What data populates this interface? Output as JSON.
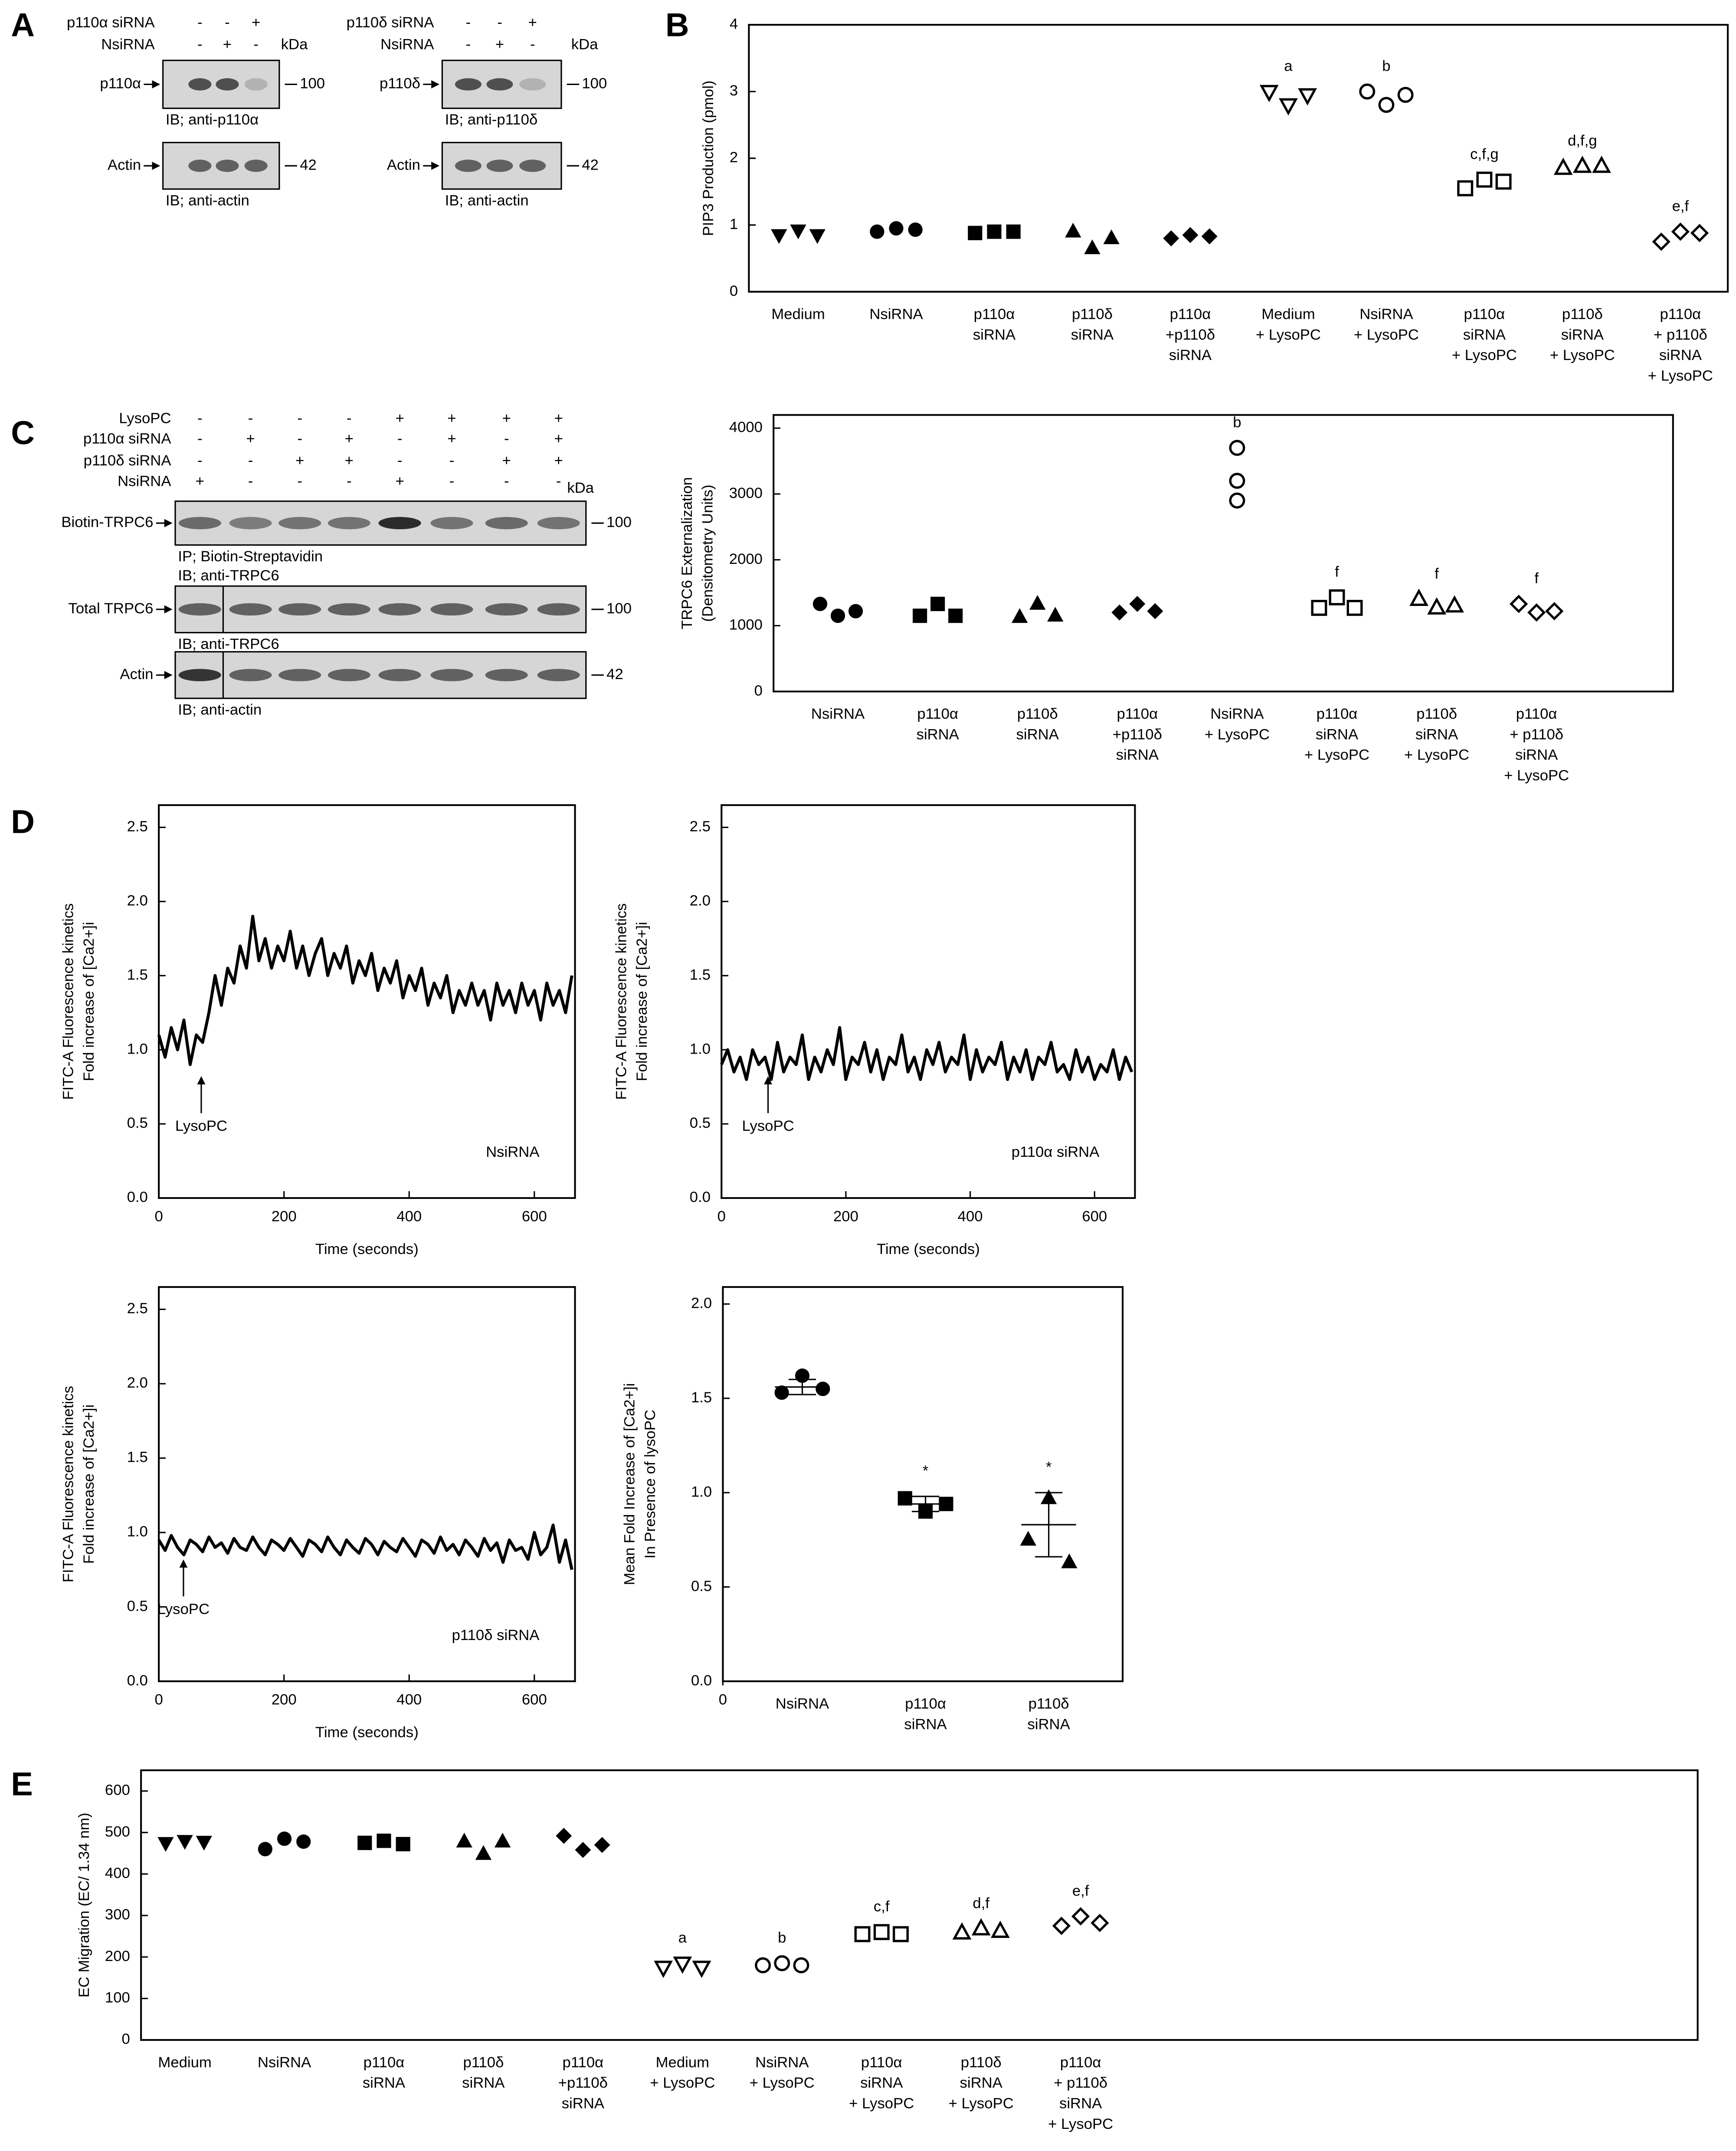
{
  "panels": [
    "A",
    "B",
    "C",
    "D",
    "E"
  ],
  "blots": {
    "A": [
      {
        "rows": [
          {
            "label": "p110α siRNA",
            "signs": [
              "-",
              "-",
              "+"
            ]
          },
          {
            "label": "NsiRNA",
            "signs": [
              "-",
              "+",
              "-"
            ]
          }
        ],
        "kda": "kDa",
        "bands": [
          {
            "label": "p110α",
            "marker": "100",
            "captions": [
              "IB; anti-p110α"
            ]
          },
          {
            "label": "Actin",
            "marker": "42",
            "captions": [
              "IB; anti-actin"
            ]
          }
        ]
      },
      {
        "rows": [
          {
            "label": "p110δ siRNA",
            "signs": [
              "-",
              "-",
              "+"
            ]
          },
          {
            "label": "NsiRNA",
            "signs": [
              "-",
              "+",
              "-"
            ]
          }
        ],
        "kda": "kDa",
        "bands": [
          {
            "label": "p110δ",
            "marker": "100",
            "captions": [
              "IB; anti-p110δ"
            ]
          },
          {
            "label": "Actin",
            "marker": "42",
            "captions": [
              "IB; anti-actin"
            ]
          }
        ]
      }
    ],
    "C": {
      "rows": [
        {
          "label": "LysoPC",
          "signs": [
            "-",
            "-",
            "-",
            "-",
            "+",
            "+",
            "+",
            "+"
          ]
        },
        {
          "label": "p110α siRNA",
          "signs": [
            "-",
            "+",
            "-",
            "+",
            "-",
            "+",
            "-",
            "+"
          ]
        },
        {
          "label": "p110δ siRNA",
          "signs": [
            "-",
            "-",
            "+",
            "+",
            "-",
            "-",
            "+",
            "+"
          ]
        },
        {
          "label": "NsiRNA",
          "signs": [
            "+",
            "-",
            "-",
            "-",
            "+",
            "-",
            "-",
            "-"
          ]
        }
      ],
      "kda": "kDa",
      "bands": [
        {
          "label": "Biotin-TRPC6",
          "marker": "100",
          "captions": [
            "IP; Biotin-Streptavidin",
            "IB; anti-TRPC6"
          ]
        },
        {
          "label": "Total TRPC6",
          "marker": "100",
          "captions": [
            "IB; anti-TRPC6"
          ]
        },
        {
          "label": "Actin",
          "marker": "42",
          "captions": [
            "IB; anti-actin"
          ]
        }
      ]
    }
  },
  "chart_data": [
    {
      "type": "dot",
      "ylabel": [
        "PIP3 Production (pmol)"
      ],
      "color": "#000000",
      "ylim": [
        0,
        4
      ],
      "yticks": [
        0,
        1,
        2,
        3,
        4
      ],
      "categories": [
        [
          "Medium"
        ],
        [
          "NsiRNA"
        ],
        [
          "p110α",
          "siRNA"
        ],
        [
          "p110δ",
          "siRNA"
        ],
        [
          "p110α",
          "+p110δ",
          "siRNA"
        ],
        [
          "Medium",
          "+ LysoPC"
        ],
        [
          "NsiRNA",
          "+ LysoPC"
        ],
        [
          "p110α",
          "siRNA",
          "+ LysoPC"
        ],
        [
          "p110δ",
          "siRNA",
          "+ LysoPC"
        ],
        [
          "p110α",
          "+ p110δ",
          "siRNA",
          "+ LysoPC"
        ]
      ],
      "markers": [
        "triangle-down-filled",
        "circle-filled",
        "square-filled",
        "triangle-up-filled",
        "diamond-filled",
        "triangle-down-open",
        "circle-open",
        "square-open",
        "triangle-up-open",
        "diamond-open"
      ],
      "values": [
        [
          0.85,
          0.92,
          0.85
        ],
        [
          0.9,
          0.95,
          0.93
        ],
        [
          0.88,
          0.9,
          0.9
        ],
        [
          0.9,
          0.65,
          0.8
        ],
        [
          0.8,
          0.85,
          0.83
        ],
        [
          3.0,
          2.8,
          2.95
        ],
        [
          3.0,
          2.8,
          2.95
        ],
        [
          1.55,
          1.68,
          1.65
        ],
        [
          1.85,
          1.88,
          1.88
        ],
        [
          0.75,
          0.9,
          0.88
        ]
      ],
      "annotations": [
        null,
        null,
        null,
        null,
        null,
        "a",
        "b",
        "c,f,g",
        "d,f,g",
        "e,f"
      ]
    },
    {
      "type": "dot",
      "ylabel": [
        "TRPC6 Externalization",
        "(Densitometry Units)"
      ],
      "color": "#000000",
      "ylim": [
        0,
        4200
      ],
      "yticks": [
        0,
        1000,
        2000,
        3000,
        4000
      ],
      "categories": [
        [
          "NsiRNA"
        ],
        [
          "p110α",
          "siRNA"
        ],
        [
          "p110δ",
          "siRNA"
        ],
        [
          "p110α",
          "+p110δ",
          "siRNA"
        ],
        [
          "NsiRNA",
          "+ LysoPC"
        ],
        [
          "p110α",
          "siRNA",
          "+ LysoPC"
        ],
        [
          "p110δ",
          "siRNA",
          "+ LysoPC"
        ],
        [
          "p110α",
          "+ p110δ",
          "siRNA",
          "+ LysoPC"
        ]
      ],
      "markers": [
        "circle-filled",
        "square-filled",
        "triangle-up-filled",
        "diamond-filled",
        "circle-open",
        "square-open",
        "triangle-up-open",
        "diamond-open"
      ],
      "values": [
        [
          1330,
          1150,
          1220
        ],
        [
          1150,
          1330,
          1150
        ],
        [
          1130,
          1330,
          1150
        ],
        [
          1200,
          1330,
          1220
        ],
        [
          3700,
          3200,
          2900
        ],
        [
          1270,
          1430,
          1270
        ],
        [
          1400,
          1270,
          1300
        ],
        [
          1330,
          1200,
          1220
        ]
      ],
      "annotations": [
        null,
        null,
        null,
        null,
        "b",
        "f",
        "f",
        "f"
      ]
    },
    {
      "type": "line",
      "ylabel": [
        "FITC-A Fluorescence kinetics",
        "Fold increase of [Ca2+]i"
      ],
      "xlabel": "Time (seconds)",
      "color": "#000000",
      "label": "NsiRNA",
      "arrow_label": "LysoPC",
      "xlim": [
        0,
        665
      ],
      "xticks": [
        0,
        200,
        400,
        600
      ],
      "ylim": [
        0,
        2.65
      ],
      "yticks": [
        {
          "value": 0,
          "label": "0.0"
        },
        0.5,
        {
          "value": 1,
          "label": "1.0"
        },
        1.5,
        {
          "value": 2,
          "label": "2.0"
        },
        2.5
      ],
      "x": [
        0,
        10,
        20,
        30,
        40,
        50,
        60,
        70,
        80,
        90,
        100,
        110,
        120,
        130,
        140,
        150,
        160,
        170,
        180,
        190,
        200,
        210,
        220,
        230,
        240,
        250,
        260,
        270,
        280,
        290,
        300,
        310,
        320,
        330,
        340,
        350,
        360,
        370,
        380,
        390,
        400,
        410,
        420,
        430,
        440,
        450,
        460,
        470,
        480,
        490,
        500,
        510,
        520,
        530,
        540,
        550,
        560,
        570,
        580,
        590,
        600,
        610,
        620,
        630,
        640,
        650,
        660
      ],
      "values": [
        1.1,
        0.95,
        1.15,
        1.0,
        1.2,
        0.9,
        1.1,
        1.05,
        1.25,
        1.5,
        1.3,
        1.55,
        1.45,
        1.7,
        1.55,
        1.9,
        1.6,
        1.75,
        1.55,
        1.7,
        1.6,
        1.8,
        1.55,
        1.7,
        1.5,
        1.65,
        1.75,
        1.5,
        1.65,
        1.55,
        1.7,
        1.45,
        1.6,
        1.5,
        1.65,
        1.4,
        1.55,
        1.45,
        1.6,
        1.35,
        1.5,
        1.4,
        1.55,
        1.3,
        1.45,
        1.35,
        1.5,
        1.25,
        1.4,
        1.3,
        1.45,
        1.3,
        1.4,
        1.2,
        1.45,
        1.3,
        1.4,
        1.25,
        1.45,
        1.3,
        1.4,
        1.2,
        1.45,
        1.3,
        1.4,
        1.25,
        1.5
      ]
    },
    {
      "type": "line",
      "ylabel": [
        "FITC-A Fluorescence kinetics",
        "Fold increase of [Ca2+]i"
      ],
      "xlabel": "Time (seconds)",
      "color": "#000000",
      "label": "p110α siRNA",
      "arrow_label": "LysoPC",
      "xlim": [
        0,
        665
      ],
      "xticks": [
        0,
        200,
        400,
        600
      ],
      "ylim": [
        0,
        2.65
      ],
      "yticks": [
        {
          "value": 0,
          "label": "0.0"
        },
        0.5,
        {
          "value": 1,
          "label": "1.0"
        },
        1.5,
        {
          "value": 2,
          "label": "2.0"
        },
        2.5
      ],
      "x": [
        0,
        10,
        20,
        30,
        40,
        50,
        60,
        70,
        80,
        90,
        100,
        110,
        120,
        130,
        140,
        150,
        160,
        170,
        180,
        190,
        200,
        210,
        220,
        230,
        240,
        250,
        260,
        270,
        280,
        290,
        300,
        310,
        320,
        330,
        340,
        350,
        360,
        370,
        380,
        390,
        400,
        410,
        420,
        430,
        440,
        450,
        460,
        470,
        480,
        490,
        500,
        510,
        520,
        530,
        540,
        550,
        560,
        570,
        580,
        590,
        600,
        610,
        620,
        630,
        640,
        650,
        660
      ],
      "values": [
        0.9,
        1.0,
        0.85,
        0.95,
        0.8,
        1.0,
        0.9,
        0.95,
        0.8,
        1.05,
        0.85,
        0.95,
        0.9,
        1.1,
        0.8,
        0.95,
        0.85,
        1.0,
        0.9,
        1.15,
        0.8,
        0.95,
        0.9,
        1.05,
        0.85,
        1.0,
        0.8,
        0.95,
        0.9,
        1.1,
        0.85,
        0.95,
        0.8,
        1.0,
        0.9,
        1.05,
        0.85,
        0.95,
        0.9,
        1.1,
        0.8,
        1.0,
        0.85,
        0.95,
        0.9,
        1.05,
        0.8,
        0.95,
        0.85,
        1.0,
        0.8,
        0.95,
        0.9,
        1.05,
        0.85,
        0.9,
        0.8,
        1.0,
        0.85,
        0.95,
        0.8,
        0.9,
        0.85,
        1.0,
        0.8,
        0.95,
        0.85
      ]
    },
    {
      "type": "line",
      "ylabel": [
        "FITC-A Fluorescence kinetics",
        "Fold increase of [Ca2+]i"
      ],
      "xlabel": "Time (seconds)",
      "color": "#000000",
      "label": "p110δ siRNA",
      "arrow_label": "LysoPC",
      "xlim": [
        0,
        665
      ],
      "xticks": [
        0,
        200,
        400,
        600
      ],
      "ylim": [
        0,
        2.65
      ],
      "yticks": [
        {
          "value": 0,
          "label": "0.0"
        },
        0.5,
        {
          "value": 1,
          "label": "1.0"
        },
        1.5,
        {
          "value": 2,
          "label": "2.0"
        },
        2.5
      ],
      "x": [
        0,
        10,
        20,
        30,
        40,
        50,
        60,
        70,
        80,
        90,
        100,
        110,
        120,
        130,
        140,
        150,
        160,
        170,
        180,
        190,
        200,
        210,
        220,
        230,
        240,
        250,
        260,
        270,
        280,
        290,
        300,
        310,
        320,
        330,
        340,
        350,
        360,
        370,
        380,
        390,
        400,
        410,
        420,
        430,
        440,
        450,
        460,
        470,
        480,
        490,
        500,
        510,
        520,
        530,
        540,
        550,
        560,
        570,
        580,
        590,
        600,
        610,
        620,
        630,
        640,
        650,
        660
      ],
      "values": [
        0.95,
        0.88,
        0.98,
        0.9,
        0.85,
        0.95,
        0.92,
        0.87,
        0.97,
        0.9,
        0.93,
        0.86,
        0.96,
        0.9,
        0.88,
        0.97,
        0.9,
        0.85,
        0.95,
        0.92,
        0.88,
        0.96,
        0.9,
        0.84,
        0.95,
        0.92,
        0.87,
        0.97,
        0.9,
        0.85,
        0.95,
        0.9,
        0.86,
        0.96,
        0.92,
        0.85,
        0.94,
        0.9,
        0.87,
        0.96,
        0.9,
        0.84,
        0.95,
        0.92,
        0.86,
        0.97,
        0.88,
        0.92,
        0.85,
        0.95,
        0.9,
        0.84,
        0.96,
        0.88,
        0.93,
        0.8,
        0.95,
        0.88,
        0.9,
        0.82,
        1.0,
        0.85,
        0.9,
        1.05,
        0.8,
        0.95,
        0.75
      ]
    },
    {
      "type": "dot",
      "ylabel": [
        "Mean Fold Increase of [Ca2+]i",
        "In Presence of lysoPC"
      ],
      "color": "#000000",
      "ylim": [
        0,
        2.09
      ],
      "yticks": [
        {
          "value": 0,
          "label": "0.0"
        },
        0.5,
        {
          "value": 1,
          "label": "1.0"
        },
        1.5,
        {
          "value": 2,
          "label": "2.0"
        }
      ],
      "xticks": [
        0
      ],
      "categories": [
        [
          "NsiRNA"
        ],
        [
          "p110α",
          "siRNA"
        ],
        [
          "p110δ",
          "siRNA"
        ]
      ],
      "markers": [
        "circle-filled",
        "square-filled",
        "triangle-up-filled"
      ],
      "values": [
        [
          1.53,
          1.62,
          1.55
        ],
        [
          0.97,
          0.9,
          0.94
        ],
        [
          0.75,
          0.97,
          0.63
        ]
      ],
      "means": [
        1.56,
        0.94,
        0.83
      ],
      "errors": [
        0.04,
        0.04,
        0.17
      ],
      "annotations": [
        null,
        "*",
        "*"
      ]
    },
    {
      "type": "dot",
      "ylabel": [
        "EC Migration (EC/ 1.34 nm)"
      ],
      "color": "#000000",
      "ylim": [
        0,
        650
      ],
      "yticks": [
        0,
        100,
        200,
        300,
        400,
        500,
        600
      ],
      "categories": [
        [
          "Medium"
        ],
        [
          "NsiRNA"
        ],
        [
          "p110α",
          "siRNA"
        ],
        [
          "p110δ",
          "siRNA"
        ],
        [
          "p110α",
          "+p110δ",
          "siRNA"
        ],
        [
          "Medium",
          "+ LysoPC"
        ],
        [
          "NsiRNA",
          "+ LysoPC"
        ],
        [
          "p110α",
          "siRNA",
          "+ LysoPC"
        ],
        [
          "p110δ",
          "siRNA",
          "+ LysoPC"
        ],
        [
          "p110α",
          "+ p110δ",
          "siRNA",
          "+ LysoPC"
        ]
      ],
      "markers": [
        "triangle-down-filled",
        "circle-filled",
        "square-filled",
        "triangle-up-filled",
        "diamond-filled",
        "triangle-down-open",
        "circle-open",
        "square-open",
        "triangle-up-open",
        "diamond-open"
      ],
      "values": [
        [
          475,
          480,
          478
        ],
        [
          460,
          485,
          478
        ],
        [
          475,
          480,
          472
        ],
        [
          478,
          448,
          478
        ],
        [
          492,
          458,
          470
        ],
        [
          175,
          185,
          175
        ],
        [
          180,
          185,
          180
        ],
        [
          255,
          260,
          255
        ],
        [
          258,
          268,
          262
        ],
        [
          275,
          298,
          282
        ]
      ],
      "annotations": [
        null,
        null,
        null,
        null,
        null,
        "a",
        "b",
        "c,f",
        "d,f",
        "e,f"
      ]
    }
  ]
}
